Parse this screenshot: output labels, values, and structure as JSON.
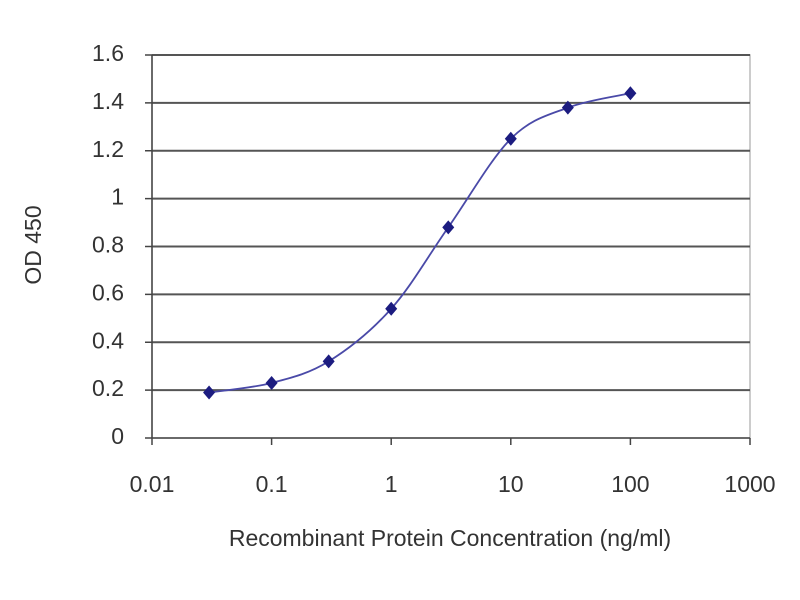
{
  "chart_data": {
    "type": "scatter",
    "x_label": "Recombinant Protein Concentration (ng/ml)",
    "y_label": "OD 450",
    "x": [
      0.03,
      0.1,
      0.3,
      1,
      3,
      10,
      30,
      100
    ],
    "series": [
      {
        "color": "#1c1c80",
        "values": [
          0.19,
          0.23,
          0.32,
          0.54,
          0.88,
          1.25,
          1.38,
          1.44
        ]
      }
    ],
    "x_log": true,
    "xlim": [
      0.01,
      1000
    ],
    "xticks": [
      0.01,
      0.1,
      1,
      10,
      100,
      1000
    ],
    "ylim": [
      0,
      1.6
    ],
    "yticks": [
      0,
      0.2,
      0.4,
      0.6,
      0.8,
      1,
      1.2,
      1.4,
      1.6
    ],
    "grid": true,
    "smooth": true
  }
}
